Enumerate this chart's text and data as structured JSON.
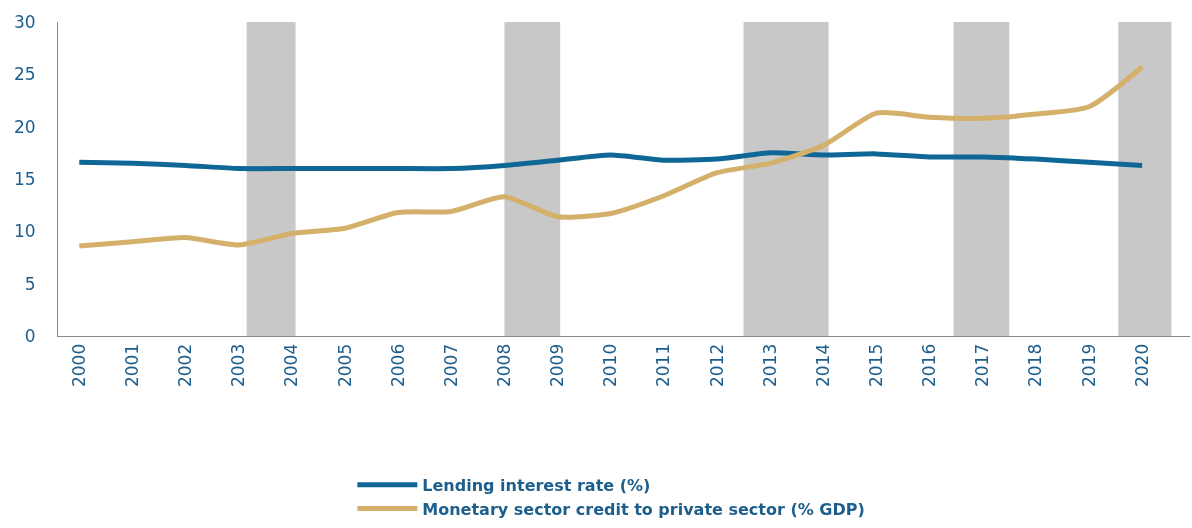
{
  "chart_data": {
    "type": "line",
    "x": [
      2000,
      2001,
      2002,
      2003,
      2004,
      2005,
      2006,
      2007,
      2008,
      2009,
      2010,
      2011,
      2012,
      2013,
      2014,
      2015,
      2016,
      2017,
      2018,
      2019,
      2020
    ],
    "series": [
      {
        "name": "Lending interest rate (%)",
        "color": "#0f6796",
        "values": [
          16.6,
          16.5,
          16.3,
          16.0,
          16.0,
          16.0,
          16.0,
          16.0,
          16.3,
          16.8,
          17.3,
          16.8,
          16.9,
          17.5,
          17.3,
          17.4,
          17.1,
          17.1,
          16.9,
          16.6,
          16.3
        ]
      },
      {
        "name": "Monetary sector credit to private sector (% GDP)",
        "color": "#d4b06a",
        "values": [
          8.6,
          9.0,
          9.4,
          8.7,
          9.8,
          10.3,
          11.8,
          11.9,
          13.3,
          11.4,
          11.7,
          13.4,
          15.6,
          16.5,
          18.2,
          21.3,
          20.9,
          20.8,
          21.2,
          21.9,
          25.7
        ]
      }
    ],
    "xlim": [
      1999.6,
      2020.9
    ],
    "xticks": [
      2000,
      2001,
      2002,
      2003,
      2004,
      2005,
      2006,
      2007,
      2008,
      2009,
      2010,
      2011,
      2012,
      2013,
      2014,
      2015,
      2016,
      2017,
      2018,
      2019,
      2020
    ],
    "ylim": [
      0,
      30
    ],
    "yticks": [
      0,
      5,
      10,
      15,
      20,
      25,
      30
    ],
    "bands": [
      {
        "axis": "x",
        "from": 2003.15,
        "to": 2004.07,
        "color": "#c8c8c8"
      },
      {
        "axis": "x",
        "from": 2008.0,
        "to": 2009.05,
        "color": "#c8c8c8"
      },
      {
        "axis": "x",
        "from": 2012.5,
        "to": 2014.1,
        "color": "#c8c8c8"
      },
      {
        "axis": "x",
        "from": 2016.45,
        "to": 2017.5,
        "color": "#c8c8c8"
      },
      {
        "axis": "x",
        "from": 2019.55,
        "to": 2020.55,
        "color": "#c8c8c8"
      }
    ],
    "grid": false,
    "legend": "bottom",
    "marker": "none",
    "line_style": "solid"
  }
}
